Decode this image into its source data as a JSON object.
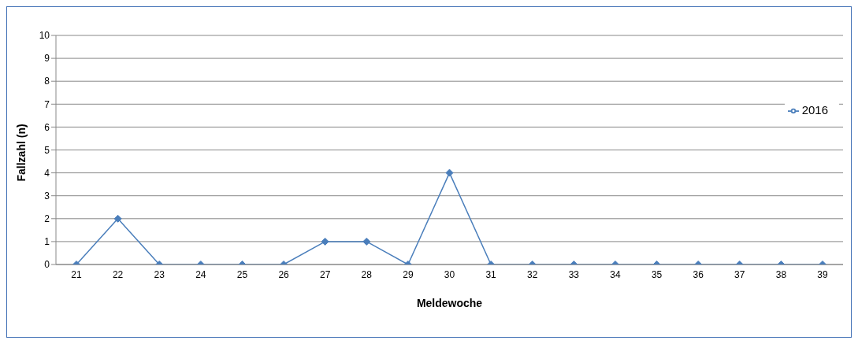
{
  "chart_data": {
    "type": "line",
    "xlabel": "Meldewoche",
    "ylabel": "Fallzahl (n)",
    "categories": [
      "21",
      "22",
      "23",
      "24",
      "25",
      "26",
      "27",
      "28",
      "29",
      "30",
      "31",
      "32",
      "33",
      "34",
      "35",
      "36",
      "37",
      "38",
      "39"
    ],
    "series": [
      {
        "name": "2016",
        "color": "#4a7ebb",
        "values": [
          0,
          2,
          0,
          0,
          0,
          0,
          1,
          1,
          0,
          4,
          0,
          0,
          0,
          0,
          0,
          0,
          0,
          0,
          0
        ]
      }
    ],
    "ylim": [
      0,
      10
    ],
    "yticks": [
      0,
      1,
      2,
      3,
      4,
      5,
      6,
      7,
      8,
      9,
      10
    ],
    "grid": "y",
    "legend": "right",
    "marker": "diamond"
  }
}
